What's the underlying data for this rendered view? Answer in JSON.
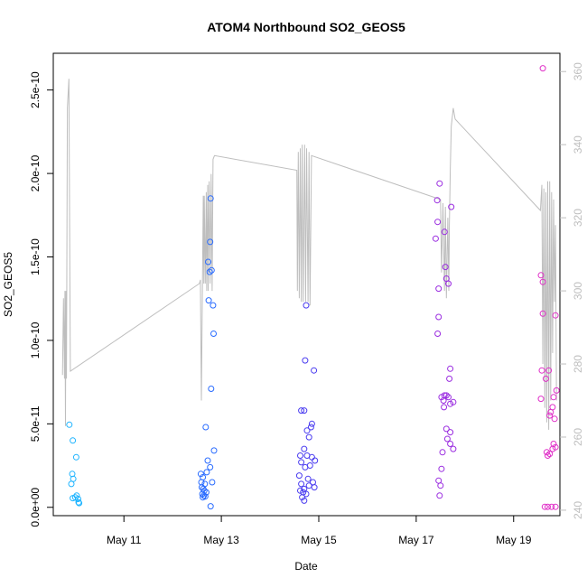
{
  "chart_data": {
    "type": "scatter",
    "title": "ATOM4 Northbound SO2_GEOS5",
    "xlabel": "Date",
    "ylabel": "SO2_GEOS5",
    "xlim": [
      9.55,
      19.95
    ],
    "ylim": [
      -5e-12,
      2.72e-10
    ],
    "y2lim": [
      238.5,
      365
    ],
    "x_ticks": [
      {
        "value": 11,
        "label": "May 11"
      },
      {
        "value": 13,
        "label": "May 13"
      },
      {
        "value": 15,
        "label": "May 15"
      },
      {
        "value": 17,
        "label": "May 17"
      },
      {
        "value": 19,
        "label": "May 19"
      }
    ],
    "y_ticks": [
      {
        "value": 0,
        "label": "0.0e+00"
      },
      {
        "value": 5e-11,
        "label": "5.0e-11"
      },
      {
        "value": 1e-10,
        "label": "1.0e-10"
      },
      {
        "value": 1.5e-10,
        "label": "1.5e-10"
      },
      {
        "value": 2e-10,
        "label": "2.0e-10"
      },
      {
        "value": 2.5e-10,
        "label": "2.5e-10"
      }
    ],
    "y2_ticks": [
      {
        "value": 240,
        "label": "240"
      },
      {
        "value": 260,
        "label": "260"
      },
      {
        "value": 280,
        "label": "280"
      },
      {
        "value": 300,
        "label": "300"
      },
      {
        "value": 320,
        "label": "320"
      },
      {
        "value": 340,
        "label": "340"
      },
      {
        "value": 360,
        "label": "360"
      }
    ],
    "grid": false,
    "colors": {
      "point_day10": "#1eb4ff",
      "point_day12": "#2a6cff",
      "point_day14": "#4a3cf0",
      "point_day17": "#9a2ce0",
      "point_day19": "#e030c8",
      "secondary_line": "#bebebe"
    },
    "points": [
      [
        9.88,
        4.95e-11,
        "point_day10"
      ],
      [
        9.95,
        4e-11,
        "point_day10"
      ],
      [
        9.92,
        1.4e-11,
        "point_day10"
      ],
      [
        9.96,
        1.7e-11,
        "point_day10"
      ],
      [
        9.94,
        2e-11,
        "point_day10"
      ],
      [
        10.02,
        3e-11,
        "point_day10"
      ],
      [
        9.95,
        5.5e-12,
        "point_day10"
      ],
      [
        10.0,
        6e-12,
        "point_day10"
      ],
      [
        10.03,
        7e-12,
        "point_day10"
      ],
      [
        10.06,
        5e-12,
        "point_day10"
      ],
      [
        10.07,
        3e-12,
        "point_day10"
      ],
      [
        10.08,
        2.5e-12,
        "point_day10"
      ],
      [
        12.78,
        1.85e-10,
        "point_day12"
      ],
      [
        12.77,
        1.59e-10,
        "point_day12"
      ],
      [
        12.73,
        1.47e-10,
        "point_day12"
      ],
      [
        12.8,
        1.42e-10,
        "point_day12"
      ],
      [
        12.76,
        1.41e-10,
        "point_day12"
      ],
      [
        12.74,
        1.24e-10,
        "point_day12"
      ],
      [
        12.83,
        1.21e-10,
        "point_day12"
      ],
      [
        12.84,
        1.04e-10,
        "point_day12"
      ],
      [
        12.79,
        7.1e-11,
        "point_day12"
      ],
      [
        12.68,
        4.8e-11,
        "point_day12"
      ],
      [
        12.85,
        3.4e-11,
        "point_day12"
      ],
      [
        12.72,
        2.8e-11,
        "point_day12"
      ],
      [
        12.77,
        2.4e-11,
        "point_day12"
      ],
      [
        12.7,
        2.1e-11,
        "point_day12"
      ],
      [
        12.58,
        2e-11,
        "point_day12"
      ],
      [
        12.62,
        1.8e-11,
        "point_day12"
      ],
      [
        12.59,
        1.5e-11,
        "point_day12"
      ],
      [
        12.81,
        1.5e-11,
        "point_day12"
      ],
      [
        12.66,
        1.4e-11,
        "point_day12"
      ],
      [
        12.6,
        1.2e-11,
        "point_day12"
      ],
      [
        12.63,
        1.1e-11,
        "point_day12"
      ],
      [
        12.65,
        1e-11,
        "point_day12"
      ],
      [
        12.69,
        9e-12,
        "point_day12"
      ],
      [
        12.61,
        8e-12,
        "point_day12"
      ],
      [
        12.64,
        7e-12,
        "point_day12"
      ],
      [
        12.62,
        6e-12,
        "point_day12"
      ],
      [
        12.67,
        6.5e-12,
        "point_day12"
      ],
      [
        12.78,
        6e-13,
        "point_day12"
      ],
      [
        14.74,
        1.21e-10,
        "point_day14"
      ],
      [
        14.72,
        8.8e-11,
        "point_day14"
      ],
      [
        14.9,
        8.2e-11,
        "point_day14"
      ],
      [
        14.64,
        5.8e-11,
        "point_day14"
      ],
      [
        14.7,
        5.8e-11,
        "point_day14"
      ],
      [
        14.86,
        5e-11,
        "point_day14"
      ],
      [
        14.84,
        4.8e-11,
        "point_day14"
      ],
      [
        14.76,
        4.6e-11,
        "point_day14"
      ],
      [
        14.8,
        4.2e-11,
        "point_day14"
      ],
      [
        14.7,
        3.5e-11,
        "point_day14"
      ],
      [
        14.62,
        3.1e-11,
        "point_day14"
      ],
      [
        14.76,
        3.1e-11,
        "point_day14"
      ],
      [
        14.86,
        3e-11,
        "point_day14"
      ],
      [
        14.92,
        2.8e-11,
        "point_day14"
      ],
      [
        14.64,
        2.7e-11,
        "point_day14"
      ],
      [
        14.82,
        2.5e-11,
        "point_day14"
      ],
      [
        14.72,
        2.4e-11,
        "point_day14"
      ],
      [
        14.6,
        1.9e-11,
        "point_day14"
      ],
      [
        14.78,
        1.7e-11,
        "point_day14"
      ],
      [
        14.88,
        1.5e-11,
        "point_day14"
      ],
      [
        14.64,
        1.4e-11,
        "point_day14"
      ],
      [
        14.8,
        1.3e-11,
        "point_day14"
      ],
      [
        14.91,
        1.2e-11,
        "point_day14"
      ],
      [
        14.7,
        1.1e-11,
        "point_day14"
      ],
      [
        14.62,
        1e-11,
        "point_day14"
      ],
      [
        14.68,
        9e-12,
        "point_day14"
      ],
      [
        14.74,
        8e-12,
        "point_day14"
      ],
      [
        14.66,
        6e-12,
        "point_day14"
      ],
      [
        14.7,
        4e-12,
        "point_day14"
      ],
      [
        17.48,
        1.94e-10,
        "point_day17"
      ],
      [
        17.43,
        1.84e-10,
        "point_day17"
      ],
      [
        17.72,
        1.8e-10,
        "point_day17"
      ],
      [
        17.44,
        1.71e-10,
        "point_day17"
      ],
      [
        17.58,
        1.65e-10,
        "point_day17"
      ],
      [
        17.4,
        1.61e-10,
        "point_day17"
      ],
      [
        17.6,
        1.44e-10,
        "point_day17"
      ],
      [
        17.62,
        1.37e-10,
        "point_day17"
      ],
      [
        17.66,
        1.34e-10,
        "point_day17"
      ],
      [
        17.46,
        1.31e-10,
        "point_day17"
      ],
      [
        17.46,
        1.14e-10,
        "point_day17"
      ],
      [
        17.44,
        1.04e-10,
        "point_day17"
      ],
      [
        17.7,
        8.3e-11,
        "point_day17"
      ],
      [
        17.68,
        7.7e-11,
        "point_day17"
      ],
      [
        17.52,
        6.6e-11,
        "point_day17"
      ],
      [
        17.58,
        6.7e-11,
        "point_day17"
      ],
      [
        17.62,
        6.7e-11,
        "point_day17"
      ],
      [
        17.66,
        6.6e-11,
        "point_day17"
      ],
      [
        17.56,
        6.4e-11,
        "point_day17"
      ],
      [
        17.76,
        6.3e-11,
        "point_day17"
      ],
      [
        17.7,
        6.2e-11,
        "point_day17"
      ],
      [
        17.57,
        6e-11,
        "point_day17"
      ],
      [
        17.62,
        4.7e-11,
        "point_day17"
      ],
      [
        17.7,
        4.5e-11,
        "point_day17"
      ],
      [
        17.64,
        4.1e-11,
        "point_day17"
      ],
      [
        17.7,
        3.8e-11,
        "point_day17"
      ],
      [
        17.76,
        3.5e-11,
        "point_day17"
      ],
      [
        17.54,
        3.3e-11,
        "point_day17"
      ],
      [
        17.52,
        2.3e-11,
        "point_day17"
      ],
      [
        17.46,
        1.6e-11,
        "point_day17"
      ],
      [
        17.5,
        1.3e-11,
        "point_day17"
      ],
      [
        17.48,
        7e-12,
        "point_day17"
      ],
      [
        19.6,
        2.63e-10,
        "point_day19"
      ],
      [
        19.56,
        1.39e-10,
        "point_day19"
      ],
      [
        19.6,
        1.35e-10,
        "point_day19"
      ],
      [
        19.6,
        1.16e-10,
        "point_day19"
      ],
      [
        19.86,
        1.15e-10,
        "point_day19"
      ],
      [
        19.58,
        8.2e-11,
        "point_day19"
      ],
      [
        19.72,
        8.2e-11,
        "point_day19"
      ],
      [
        19.66,
        7.7e-11,
        "point_day19"
      ],
      [
        19.88,
        7e-11,
        "point_day19"
      ],
      [
        19.56,
        6.5e-11,
        "point_day19"
      ],
      [
        19.82,
        6.6e-11,
        "point_day19"
      ],
      [
        19.8,
        6e-11,
        "point_day19"
      ],
      [
        19.76,
        5.7e-11,
        "point_day19"
      ],
      [
        19.74,
        5.5e-11,
        "point_day19"
      ],
      [
        19.84,
        5.3e-11,
        "point_day19"
      ],
      [
        19.82,
        3.8e-11,
        "point_day19"
      ],
      [
        19.86,
        3.6e-11,
        "point_day19"
      ],
      [
        19.8,
        3.5e-11,
        "point_day19"
      ],
      [
        19.68,
        3.3e-11,
        "point_day19"
      ],
      [
        19.74,
        3.2e-11,
        "point_day19"
      ],
      [
        19.7,
        3.1e-11,
        "point_day19"
      ],
      [
        19.64,
        3e-13,
        "point_day19"
      ],
      [
        19.7,
        3e-13,
        "point_day19"
      ],
      [
        19.78,
        3e-13,
        "point_day19"
      ],
      [
        19.86,
        3e-13,
        "point_day19"
      ]
    ],
    "secondary_line": [
      [
        9.74,
        277
      ],
      [
        9.76,
        298
      ],
      [
        9.78,
        276
      ],
      [
        9.79,
        300
      ],
      [
        9.8,
        263
      ],
      [
        9.81,
        300
      ],
      [
        9.82,
        276
      ],
      [
        9.84,
        350
      ],
      [
        9.87,
        358
      ],
      [
        9.9,
        278
      ],
      [
        12.55,
        302
      ],
      [
        12.57,
        303
      ],
      [
        12.59,
        270
      ],
      [
        12.61,
        300
      ],
      [
        12.63,
        326
      ],
      [
        12.64,
        302
      ],
      [
        12.65,
        326
      ],
      [
        12.67,
        302
      ],
      [
        12.69,
        327
      ],
      [
        12.7,
        300
      ],
      [
        12.72,
        329
      ],
      [
        12.73,
        300
      ],
      [
        12.75,
        330
      ],
      [
        12.77,
        302
      ],
      [
        12.79,
        332
      ],
      [
        12.81,
        300
      ],
      [
        12.83,
        336
      ],
      [
        12.86,
        337
      ],
      [
        14.55,
        333
      ],
      [
        14.56,
        300
      ],
      [
        14.58,
        338
      ],
      [
        14.6,
        298
      ],
      [
        14.62,
        339
      ],
      [
        14.64,
        297
      ],
      [
        14.66,
        340
      ],
      [
        14.68,
        297
      ],
      [
        14.71,
        340
      ],
      [
        14.73,
        297
      ],
      [
        14.75,
        339
      ],
      [
        14.78,
        297
      ],
      [
        14.8,
        338
      ],
      [
        14.82,
        296
      ],
      [
        14.85,
        337
      ],
      [
        17.5,
        325
      ],
      [
        17.52,
        305
      ],
      [
        17.55,
        324
      ],
      [
        17.58,
        300
      ],
      [
        17.6,
        323
      ],
      [
        17.62,
        298
      ],
      [
        17.65,
        320
      ],
      [
        17.67,
        300
      ],
      [
        17.68,
        318
      ],
      [
        17.7,
        333
      ],
      [
        17.72,
        345
      ],
      [
        17.76,
        350
      ],
      [
        17.8,
        347
      ],
      [
        19.55,
        322
      ],
      [
        19.58,
        329
      ],
      [
        19.6,
        280
      ],
      [
        19.62,
        328
      ],
      [
        19.64,
        268
      ],
      [
        19.66,
        327
      ],
      [
        19.68,
        264
      ],
      [
        19.7,
        330
      ],
      [
        19.72,
        262
      ],
      [
        19.74,
        330
      ],
      [
        19.76,
        270
      ],
      [
        19.78,
        327
      ],
      [
        19.8,
        283
      ],
      [
        19.82,
        325
      ],
      [
        19.84,
        297
      ],
      [
        19.86,
        318
      ],
      [
        19.88,
        270
      ]
    ]
  }
}
